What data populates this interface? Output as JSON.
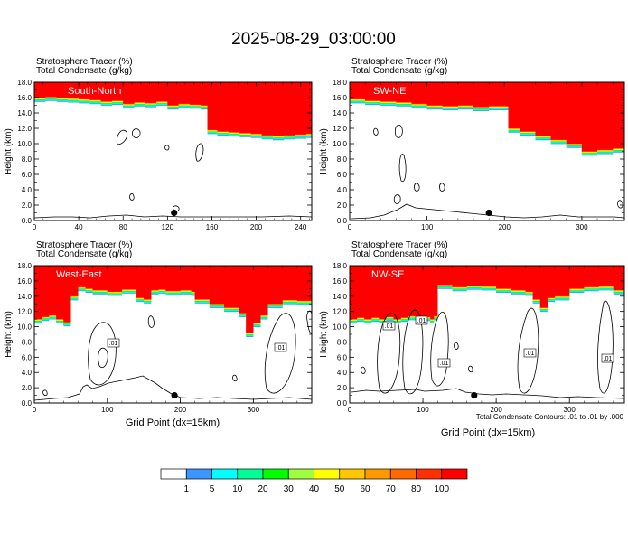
{
  "figure": {
    "title": "2025-08-29_03:00:00",
    "header_line1": "Stratosphere Tracer   (%)",
    "header_line2": "Total Condensate   (g/kg)",
    "ylabel": "Height (km)",
    "xlabel": "Grid Point (dx=15km)",
    "contour_note": "Total Condensate Contours: .01 to .01 by .000",
    "contour_label": ".01"
  },
  "colors": {
    "red": "#ff0000",
    "orange_red": "#ff4a00",
    "orange": "#ff9900",
    "yellow_orange": "#ffc800",
    "yellow": "#ffff00",
    "yellow_green": "#a0ff3c",
    "green": "#00ff00",
    "spring_green": "#00ff96",
    "cyan": "#00ffff",
    "blue": "#3c96ff"
  },
  "chart_data": [
    {
      "type": "heatmap",
      "panel": "South-North",
      "xlim": [
        0,
        250
      ],
      "ylim": [
        0,
        18
      ],
      "xticks": [
        "0",
        "40",
        "80",
        "120",
        "160",
        "200",
        "240"
      ],
      "yticks": [
        "0.0",
        "2.0",
        "4.0",
        "6.0",
        "8.0",
        "10.0",
        "12.0",
        "14.0",
        "16.0",
        "18.0"
      ],
      "tracer_boundary": {
        "x": [
          0,
          10,
          20,
          30,
          40,
          50,
          60,
          70,
          80,
          90,
          100,
          110,
          120,
          130,
          140,
          150,
          156,
          165,
          175,
          185,
          195,
          205,
          215,
          225,
          235,
          245,
          250
        ],
        "y": [
          16.0,
          16.1,
          16.0,
          15.9,
          15.8,
          15.7,
          15.5,
          15.6,
          15.2,
          15.4,
          15.3,
          15.5,
          15.0,
          15.2,
          15.1,
          15.0,
          11.8,
          11.6,
          11.5,
          11.4,
          11.3,
          11.1,
          11.0,
          11.1,
          11.2,
          11.3,
          11.4
        ]
      },
      "marker": {
        "x": 126,
        "y": 1.0
      }
    },
    {
      "type": "heatmap",
      "panel": "SW-NE",
      "xlim": [
        0,
        355
      ],
      "ylim": [
        0,
        18
      ],
      "xticks": [
        "0",
        "100",
        "200",
        "300"
      ],
      "yticks": [
        "0.0",
        "2.0",
        "4.0",
        "6.0",
        "8.0",
        "10.0",
        "12.0",
        "14.0",
        "16.0",
        "18.0"
      ],
      "tracer_boundary": {
        "x": [
          0,
          20,
          40,
          60,
          80,
          100,
          120,
          140,
          160,
          180,
          195,
          205,
          220,
          240,
          260,
          280,
          300,
          320,
          340,
          355
        ],
        "y": [
          15.8,
          15.6,
          15.5,
          15.4,
          15.2,
          15.0,
          14.9,
          15.0,
          14.8,
          14.9,
          14.9,
          12.0,
          11.6,
          11.0,
          10.5,
          10.0,
          9.0,
          9.2,
          9.4,
          9.5
        ]
      },
      "marker": {
        "x": 180,
        "y": 1.0
      }
    },
    {
      "type": "heatmap",
      "panel": "West-East",
      "xlim": [
        0,
        380
      ],
      "ylim": [
        0,
        18
      ],
      "xticks": [
        "0",
        "100",
        "200",
        "300"
      ],
      "yticks": [
        "0.0",
        "2.0",
        "4.0",
        "6.0",
        "8.0",
        "10.0",
        "12.0",
        "14.0",
        "16.0",
        "18.0"
      ],
      "tracer_boundary": {
        "x": [
          0,
          10,
          20,
          30,
          40,
          50,
          60,
          70,
          80,
          100,
          120,
          140,
          150,
          160,
          170,
          180,
          200,
          215,
          220,
          240,
          260,
          280,
          290,
          300,
          310,
          320,
          340,
          360,
          380
        ],
        "y": [
          11.0,
          11.3,
          11.5,
          11.0,
          10.6,
          14.0,
          15.2,
          15.0,
          14.8,
          14.6,
          14.9,
          13.8,
          13.6,
          14.8,
          14.9,
          14.7,
          14.8,
          14.6,
          13.6,
          13.0,
          12.5,
          11.8,
          9.2,
          10.5,
          11.5,
          13.0,
          13.5,
          13.4,
          13.6
        ]
      },
      "marker": {
        "x": 192,
        "y": 1.0
      }
    },
    {
      "type": "heatmap",
      "panel": "NW-SE",
      "xlim": [
        0,
        375
      ],
      "ylim": [
        0,
        18
      ],
      "xticks": [
        "0",
        "100",
        "200",
        "300"
      ],
      "yticks": [
        "0.0",
        "2.0",
        "4.0",
        "6.0",
        "8.0",
        "10.0",
        "12.0",
        "14.0",
        "16.0",
        "18.0"
      ],
      "tracer_boundary": {
        "x": [
          0,
          10,
          20,
          30,
          40,
          50,
          60,
          70,
          80,
          90,
          100,
          110,
          115,
          120,
          140,
          160,
          180,
          200,
          220,
          240,
          250,
          260,
          270,
          280,
          300,
          320,
          340,
          360,
          375
        ],
        "y": [
          11.0,
          11.2,
          11.0,
          11.2,
          11.0,
          11.3,
          11.0,
          11.2,
          11.4,
          11.0,
          11.3,
          11.0,
          11.4,
          15.5,
          15.2,
          15.4,
          15.3,
          15.0,
          14.8,
          14.6,
          13.6,
          12.5,
          13.8,
          14.0,
          15.0,
          15.2,
          15.3,
          14.8,
          14.5
        ]
      },
      "marker": {
        "x": 170,
        "y": 1.0
      }
    }
  ],
  "colorbar": {
    "labels": [
      "1",
      "5",
      "10",
      "20",
      "30",
      "40",
      "50",
      "60",
      "70",
      "80",
      "100"
    ],
    "colors": [
      "#ffffff",
      "#3c96ff",
      "#00ffff",
      "#00ff96",
      "#00ff00",
      "#a0ff3c",
      "#ffff00",
      "#ffc800",
      "#ff9900",
      "#ff6a00",
      "#ff3000",
      "#ff0000"
    ]
  }
}
